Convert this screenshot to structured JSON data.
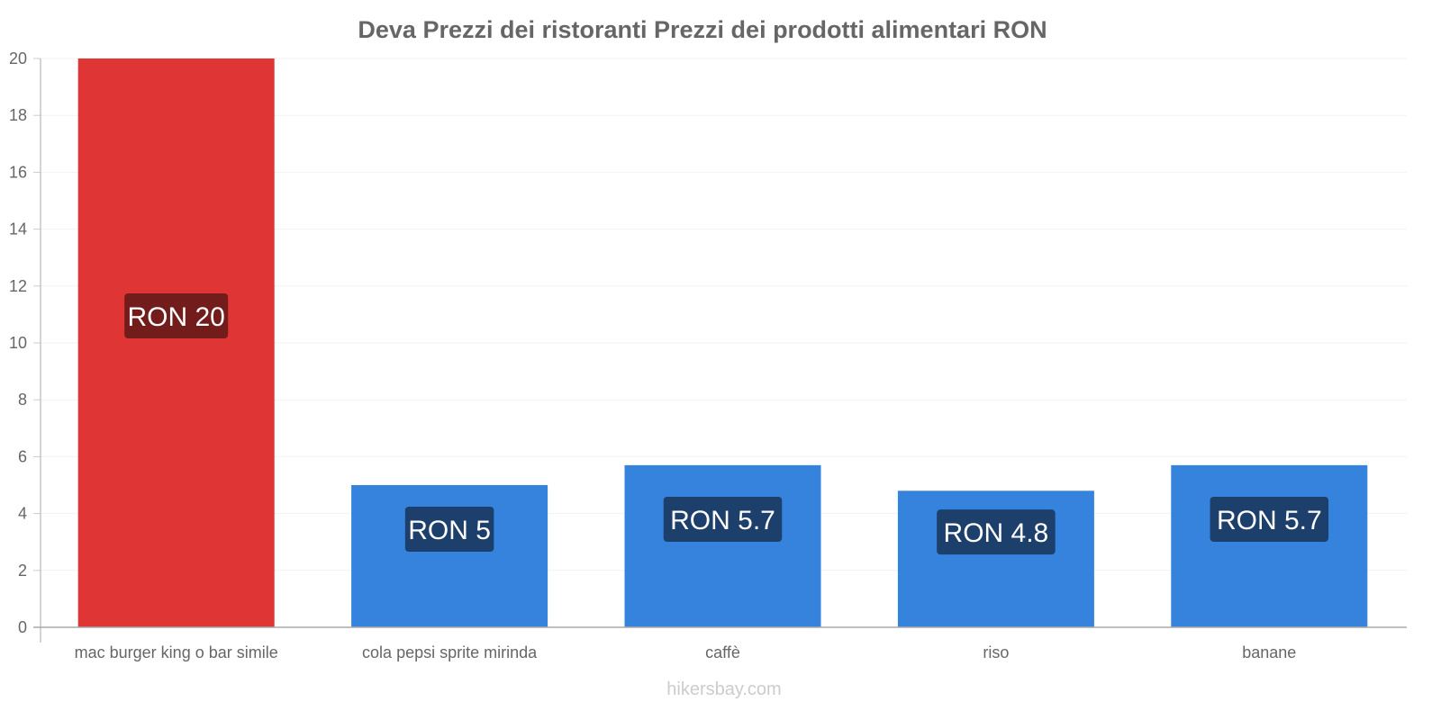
{
  "chart_data": {
    "type": "bar",
    "title": "Deva Prezzi dei ristoranti Prezzi dei prodotti alimentari RON",
    "categories": [
      "mac burger king o bar simile",
      "cola pepsi sprite mirinda",
      "caffè",
      "riso",
      "banane"
    ],
    "values": [
      20,
      5,
      5.7,
      4.8,
      5.7
    ],
    "data_labels": [
      "RON 20",
      "RON 5",
      "RON 5.7",
      "RON 4.8",
      "RON 5.7"
    ],
    "bar_colors": [
      "#e03535",
      "#3583dc",
      "#3583dc",
      "#3583dc",
      "#3583dc"
    ],
    "label_bg_colors": [
      "#731c1c",
      "#1d3f6b",
      "#1d3f6b",
      "#1d3f6b",
      "#1d3f6b"
    ],
    "xlabel": "",
    "ylabel": "",
    "ylim": [
      0,
      20
    ],
    "yticks": [
      0,
      2,
      4,
      6,
      8,
      10,
      12,
      14,
      16,
      18,
      20
    ],
    "grid": true,
    "legend": "none"
  },
  "footer": "hikersbay.com"
}
